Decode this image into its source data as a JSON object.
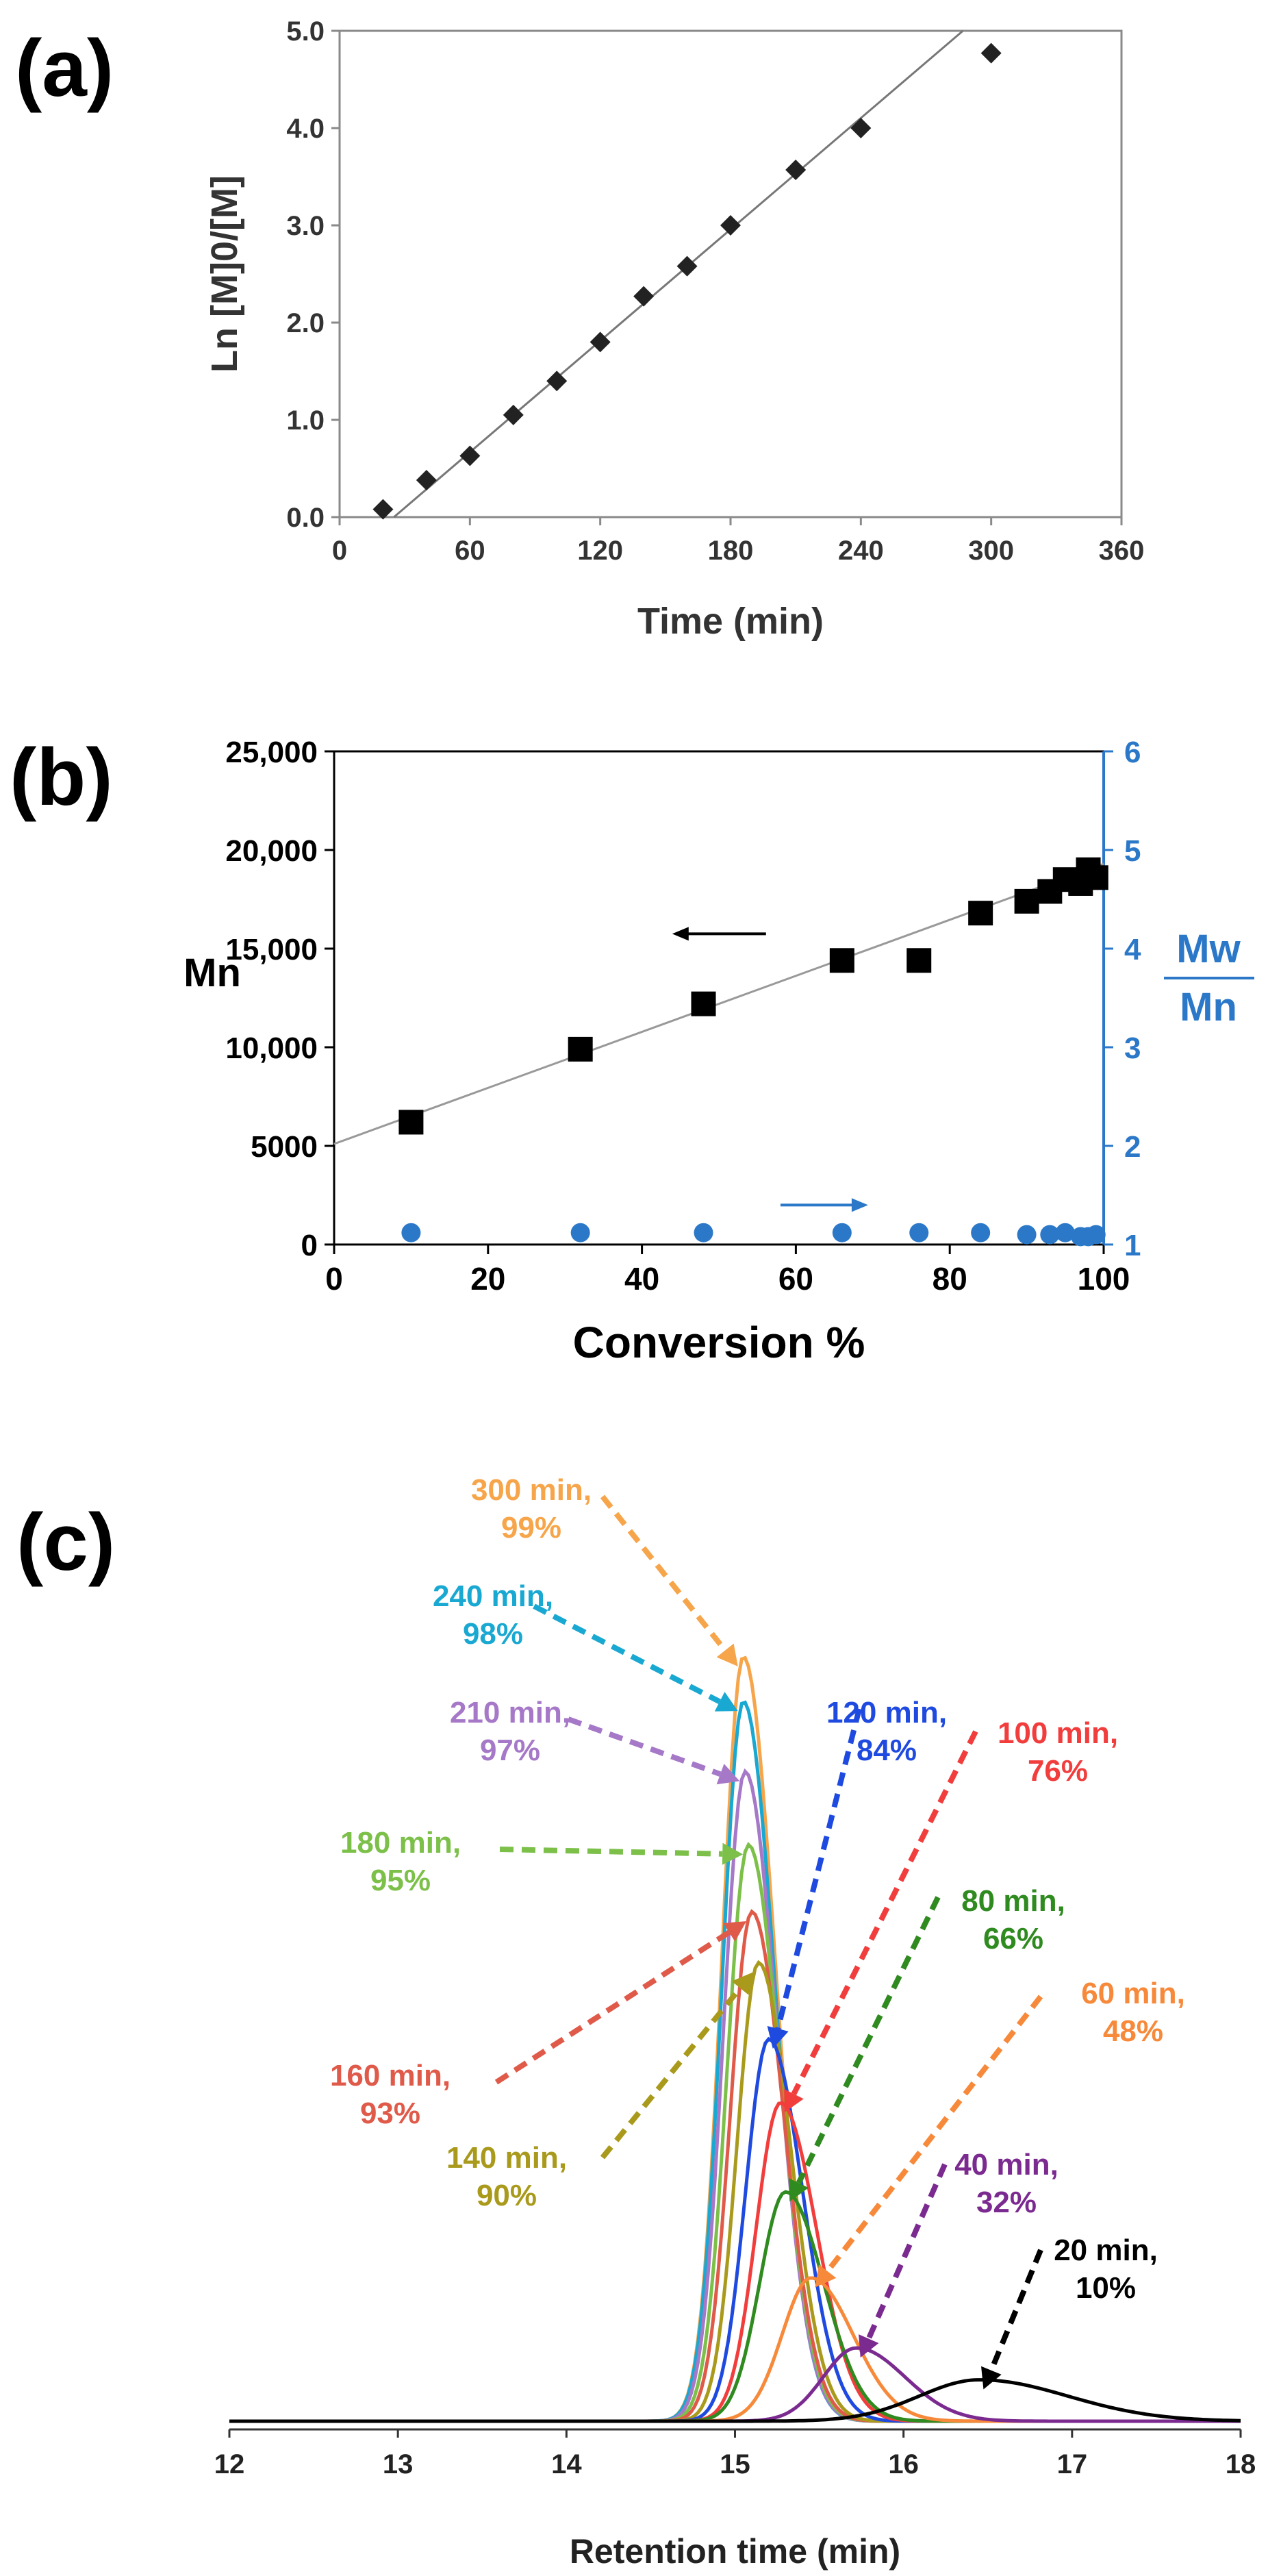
{
  "chart_data": [
    {
      "panel": "(a)",
      "type": "scatter",
      "xlabel": "Time (min)",
      "ylabel": "Ln [M]0/[M]",
      "xlim": [
        0,
        360
      ],
      "ylim": [
        0,
        5.0
      ],
      "xticks": [
        0,
        60,
        120,
        180,
        240,
        300,
        360
      ],
      "xtick_labels": [
        "0",
        "60",
        "120",
        "180",
        "240",
        "300",
        "360"
      ],
      "yticks": [
        0,
        1,
        2,
        3,
        4,
        5
      ],
      "ytick_labels": [
        "0.0",
        "1.0",
        "2.0",
        "3.0",
        "4.0",
        "5.0"
      ],
      "series": [
        {
          "name": "data",
          "x": [
            20,
            40,
            60,
            80,
            100,
            120,
            140,
            160,
            180,
            210,
            240,
            300
          ],
          "y": [
            0.08,
            0.38,
            0.63,
            1.05,
            1.4,
            1.8,
            2.27,
            2.58,
            3.0,
            3.57,
            4.0,
            4.77
          ]
        }
      ],
      "fit_line": {
        "x": [
          25,
          287
        ],
        "y": [
          0,
          5.0
        ]
      }
    },
    {
      "panel": "(b)",
      "type": "scatter",
      "xlabel": "Conversion %",
      "ylabel": "Mn",
      "y2label_top": "Mw",
      "y2label_bottom": "Mn",
      "xlim": [
        0,
        100
      ],
      "ylim": [
        0,
        25000
      ],
      "y2lim": [
        1,
        6
      ],
      "xticks": [
        0,
        20,
        40,
        60,
        80,
        100
      ],
      "xtick_labels": [
        "0",
        "20",
        "40",
        "60",
        "80",
        "100"
      ],
      "yticks": [
        0,
        5000,
        10000,
        15000,
        20000,
        25000
      ],
      "ytick_labels": [
        "0",
        "5000",
        "10,000",
        "15,000",
        "20,000",
        "25,000"
      ],
      "y2ticks": [
        1,
        2,
        3,
        4,
        5,
        6
      ],
      "y2tick_labels": [
        "1",
        "2",
        "3",
        "4",
        "5",
        "6"
      ],
      "series": [
        {
          "name": "Mn",
          "axis": "left",
          "color": "#000000",
          "x": [
            10,
            32,
            48,
            66,
            76,
            84,
            90,
            93,
            95,
            97,
            98,
            99
          ],
          "y": [
            6200,
            9900,
            12200,
            14400,
            14400,
            16800,
            17400,
            17900,
            18500,
            18300,
            19000,
            18600
          ]
        },
        {
          "name": "Mw/Mn",
          "axis": "right",
          "color": "#2b78c8",
          "x": [
            10,
            32,
            48,
            66,
            76,
            84,
            90,
            93,
            95,
            97,
            98,
            99
          ],
          "y": [
            1.12,
            1.12,
            1.12,
            1.12,
            1.12,
            1.12,
            1.1,
            1.1,
            1.12,
            1.08,
            1.08,
            1.1
          ]
        }
      ],
      "fit_line": {
        "x": [
          0,
          100
        ],
        "y": [
          5100,
          19300
        ]
      },
      "arrows": [
        {
          "direction": "left",
          "color": "#000000",
          "x": 45,
          "y": 15750
        },
        {
          "direction": "right",
          "color": "#2b78c8",
          "x": 58,
          "y": 1.4
        }
      ]
    },
    {
      "panel": "(c)",
      "type": "line",
      "xlabel": "Retention time (min)",
      "ylabel": "",
      "xlim": [
        12,
        18
      ],
      "ylim": [
        0,
        1.0
      ],
      "xticks": [
        12,
        13,
        14,
        15,
        16,
        17,
        18
      ],
      "xtick_labels": [
        "12",
        "13",
        "14",
        "15",
        "16",
        "17",
        "18"
      ],
      "series": [
        {
          "name": "20 min, 10%",
          "time": "20 min,",
          "conversion": "10%",
          "color": "#000000",
          "peak_x": 16.45,
          "peak_y": 0.065,
          "sigma": 0.42
        },
        {
          "name": "40 min, 32%",
          "time": "40 min,",
          "conversion": "32%",
          "color": "#7b2a90",
          "peak_x": 15.72,
          "peak_y": 0.115,
          "sigma": 0.23
        },
        {
          "name": "60 min, 48%",
          "time": "60 min,",
          "conversion": "48%",
          "color": "#f7893a",
          "peak_x": 15.45,
          "peak_y": 0.225,
          "sigma": 0.2
        },
        {
          "name": "80 min, 66%",
          "time": "80 min,",
          "conversion": "66%",
          "color": "#2f8a1f",
          "peak_x": 15.3,
          "peak_y": 0.36,
          "sigma": 0.18
        },
        {
          "name": "100 min, 76%",
          "time": "100 min,",
          "conversion": "76%",
          "color": "#f23d3d",
          "peak_x": 15.27,
          "peak_y": 0.5,
          "sigma": 0.17
        },
        {
          "name": "120 min, 84%",
          "time": "120 min,",
          "conversion": "84%",
          "color": "#1f4ae0",
          "peak_x": 15.2,
          "peak_y": 0.6,
          "sigma": 0.16
        },
        {
          "name": "140 min, 90%",
          "time": "140 min,",
          "conversion": "90%",
          "color": "#a99a1c",
          "peak_x": 15.14,
          "peak_y": 0.72,
          "sigma": 0.15
        },
        {
          "name": "160 min, 93%",
          "time": "160 min,",
          "conversion": "93%",
          "color": "#e05a4a",
          "peak_x": 15.1,
          "peak_y": 0.8,
          "sigma": 0.15
        },
        {
          "name": "180 min, 95%",
          "time": "180 min,",
          "conversion": "95%",
          "color": "#7cc04a",
          "peak_x": 15.08,
          "peak_y": 0.905,
          "sigma": 0.15
        },
        {
          "name": "210 min, 97%",
          "time": "210 min,",
          "conversion": "97%",
          "color": "#a678c8",
          "peak_x": 15.06,
          "peak_y": 1.02,
          "sigma": 0.15
        },
        {
          "name": "240 min, 98%",
          "time": "240 min,",
          "conversion": "98%",
          "color": "#19a8d1",
          "peak_x": 15.05,
          "peak_y": 1.13,
          "sigma": 0.15
        },
        {
          "name": "300 min, 99%",
          "time": "300 min,",
          "conversion": "99%",
          "color": "#f7a54a",
          "peak_x": 15.05,
          "peak_y": 1.2,
          "sigma": 0.15
        }
      ]
    }
  ],
  "labels": {
    "panel_a": "(a)",
    "panel_b": "(b)",
    "panel_c": "(c)"
  }
}
